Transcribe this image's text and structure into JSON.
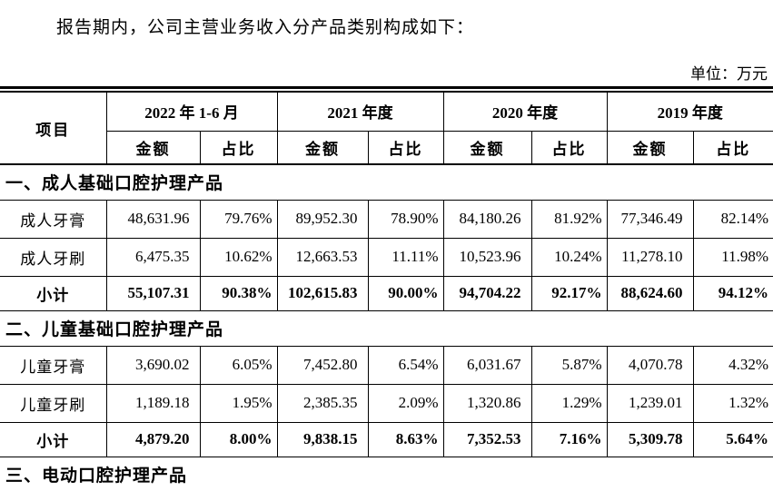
{
  "colors": {
    "text": "#000000",
    "background": "#ffffff",
    "table_border": "#000000"
  },
  "page": {
    "intro_text": "报告期内，公司主营业务收入分产品类别构成如下：",
    "unit_label": "单位：万元"
  },
  "table": {
    "item_header": "项目",
    "amount_label": "金额",
    "ratio_label": "占比",
    "periods": [
      "2022 年 1-6 月",
      "2021 年度",
      "2020 年度",
      "2019 年度"
    ],
    "sections": [
      {
        "title": "一、成人基础口腔护理产品",
        "rows": [
          {
            "label": "成人牙膏",
            "bold": false,
            "values": [
              "48,631.96",
              "79.76%",
              "89,952.30",
              "78.90%",
              "84,180.26",
              "81.92%",
              "77,346.49",
              "82.14%"
            ]
          },
          {
            "label": "成人牙刷",
            "bold": false,
            "values": [
              "6,475.35",
              "10.62%",
              "12,663.53",
              "11.11%",
              "10,523.96",
              "10.24%",
              "11,278.10",
              "11.98%"
            ]
          },
          {
            "label": "小计",
            "bold": true,
            "values": [
              "55,107.31",
              "90.38%",
              "102,615.83",
              "90.00%",
              "94,704.22",
              "92.17%",
              "88,624.60",
              "94.12%"
            ]
          }
        ]
      },
      {
        "title": "二、儿童基础口腔护理产品",
        "rows": [
          {
            "label": "儿童牙膏",
            "bold": false,
            "values": [
              "3,690.02",
              "6.05%",
              "7,452.80",
              "6.54%",
              "6,031.67",
              "5.87%",
              "4,070.78",
              "4.32%"
            ]
          },
          {
            "label": "儿童牙刷",
            "bold": false,
            "values": [
              "1,189.18",
              "1.95%",
              "2,385.35",
              "2.09%",
              "1,320.86",
              "1.29%",
              "1,239.01",
              "1.32%"
            ]
          },
          {
            "label": "小计",
            "bold": true,
            "values": [
              "4,879.20",
              "8.00%",
              "9,838.15",
              "8.63%",
              "7,352.53",
              "7.16%",
              "5,309.78",
              "5.64%"
            ]
          }
        ]
      },
      {
        "title": "三、电动口腔护理产品",
        "rows": []
      }
    ]
  }
}
